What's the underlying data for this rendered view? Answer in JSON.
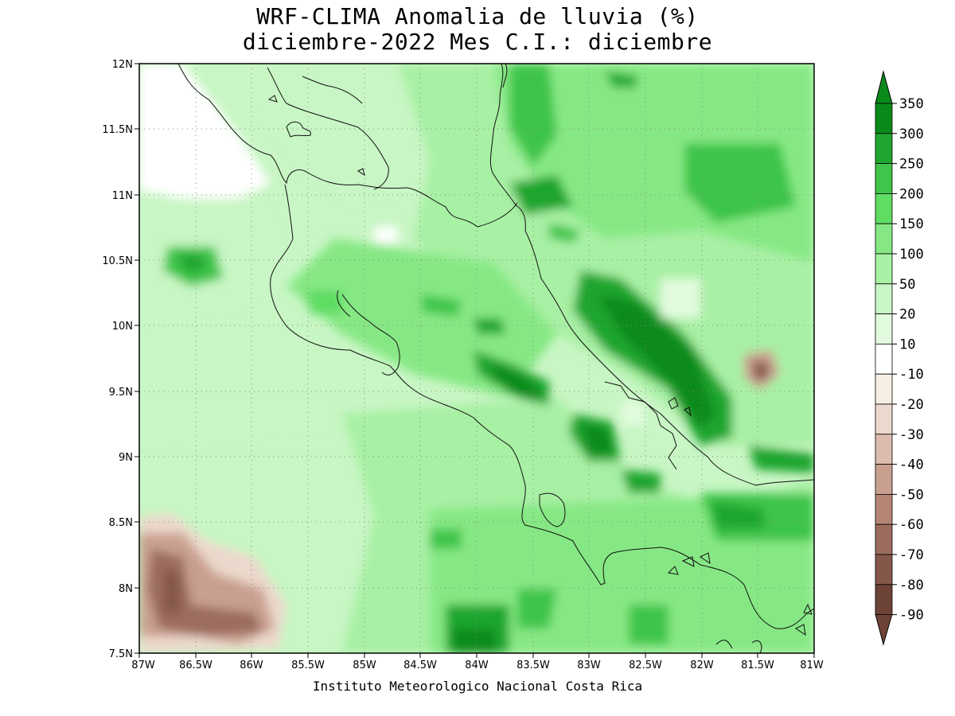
{
  "title": {
    "line1": "WRF-CLIMA Anomalia de lluvia (%)",
    "line2": "diciembre-2022 Mes C.I.: diciembre"
  },
  "credit": "Instituto Meteorologico Nacional Costa Rica",
  "map": {
    "lat_labels": [
      "12N",
      "11.5N",
      "11N",
      "10.5N",
      "10N",
      "9.5N",
      "9N",
      "8.5N",
      "8N",
      "7.5N"
    ],
    "lon_labels": [
      "87W",
      "86.5W",
      "86W",
      "85.5W",
      "85W",
      "84.5W",
      "84W",
      "83.5W",
      "83W",
      "82.5W",
      "82W",
      "81.5W",
      "81W"
    ],
    "lat_range": [
      7.5,
      12
    ],
    "lon_range": [
      -87,
      -81
    ]
  },
  "colorbar": {
    "levels": [
      "350",
      "300",
      "250",
      "200",
      "150",
      "100",
      "50",
      "20",
      "10",
      "-10",
      "-20",
      "-30",
      "-40",
      "-50",
      "-60",
      "-70",
      "-80",
      "-90"
    ],
    "colors": [
      "#0b8a1c",
      "#1fa62e",
      "#3ec54a",
      "#5fdc62",
      "#86e884",
      "#a8f0a4",
      "#c8f6c4",
      "#e2fbde",
      "#ffffff",
      "#f7eee4",
      "#ecd8cc",
      "#dcbcae",
      "#c9a090",
      "#b48575",
      "#9c6c5e",
      "#85574a",
      "#6e4337"
    ]
  }
}
